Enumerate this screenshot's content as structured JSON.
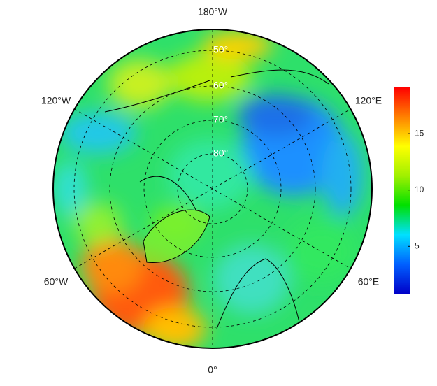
{
  "map": {
    "longitude_labels": [
      "180°W",
      "120°W",
      "120°E",
      "60°W",
      "60°E",
      "0°"
    ],
    "latitude_labels": [
      "50°",
      "60°",
      "70°",
      "80°"
    ]
  },
  "colorbar": {
    "lim": [
      0.8,
      19.1
    ],
    "ticks": [
      5,
      10,
      15
    ],
    "colors": [
      "#0000c8",
      "#0060ff",
      "#00e0ff",
      "#00e000",
      "#a0f000",
      "#ffff00",
      "#ff8000",
      "#ff0000"
    ]
  }
}
